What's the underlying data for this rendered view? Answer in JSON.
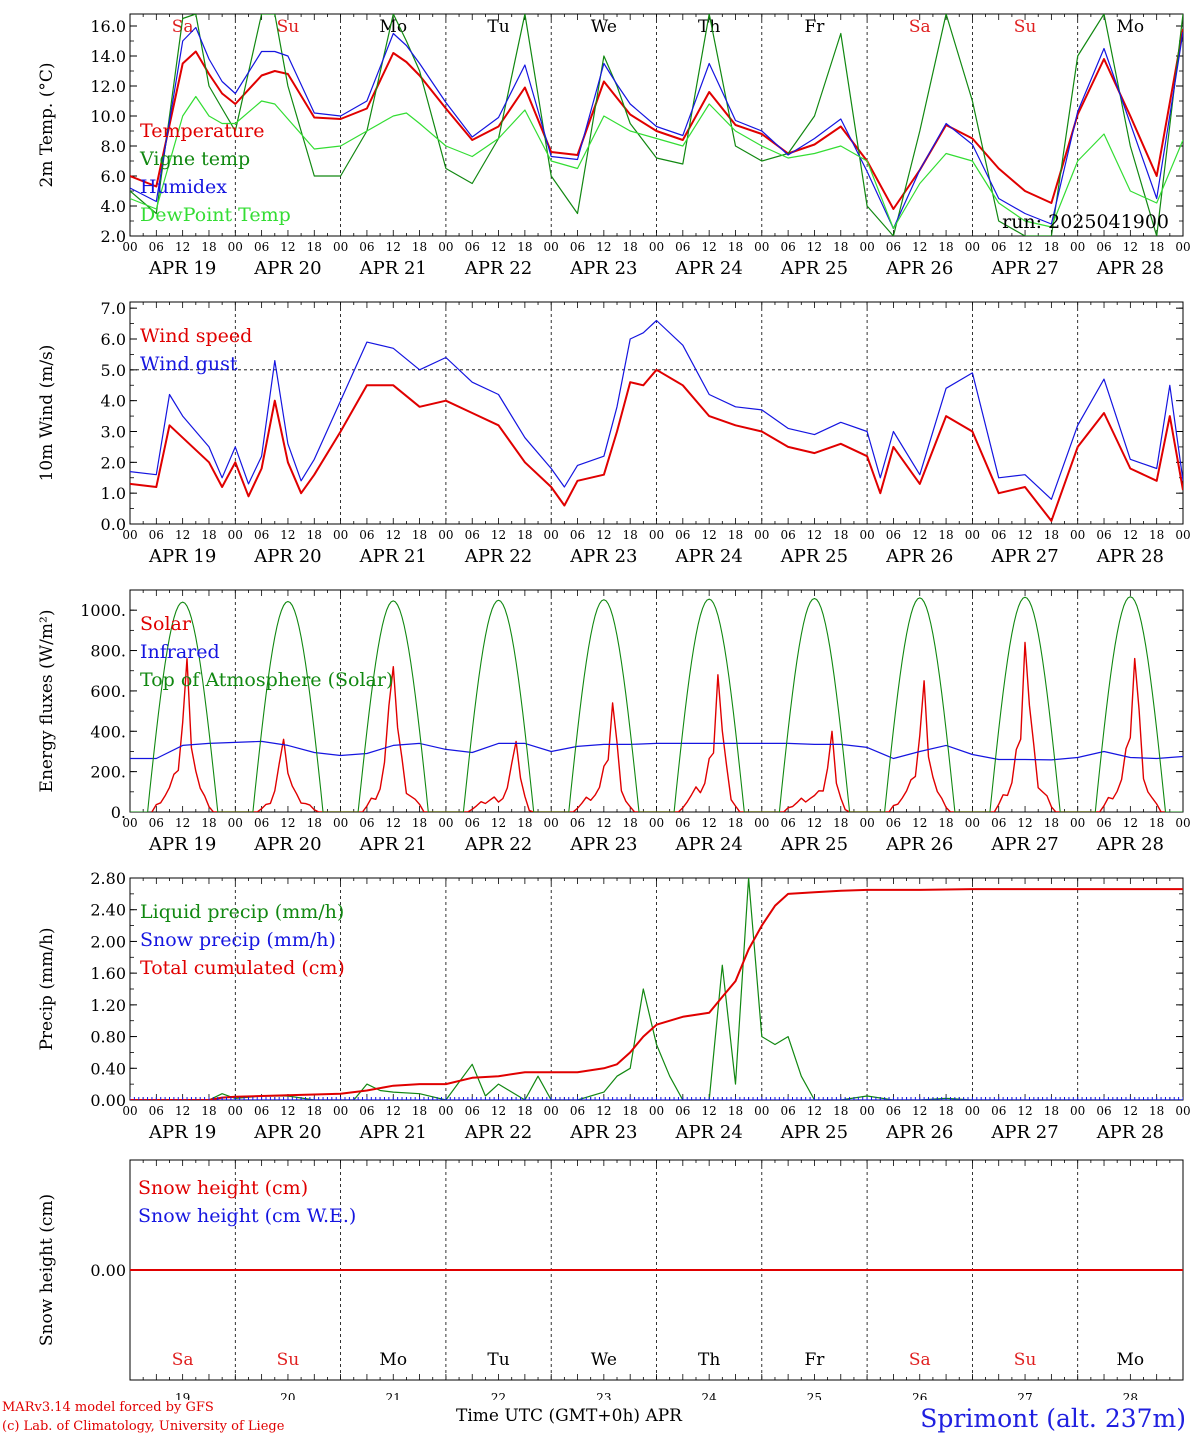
{
  "days": {
    "weekday_labels": [
      "Sa",
      "Su",
      "Mo",
      "Tu",
      "We",
      "Th",
      "Fr",
      "Sa",
      "Su",
      "Mo"
    ],
    "weekday_colors": [
      "#e02020",
      "#e02020",
      "#000000",
      "#000000",
      "#000000",
      "#000000",
      "#000000",
      "#e02020",
      "#e02020",
      "#000000"
    ],
    "date_labels": [
      "APR 19",
      "APR 20",
      "APR 21",
      "APR 22",
      "APR 23",
      "APR 24",
      "APR 25",
      "APR 26",
      "APR 27",
      "APR 28"
    ],
    "day_numbers": [
      "19",
      "20",
      "21",
      "22",
      "23",
      "24",
      "25",
      "26",
      "27",
      "28"
    ],
    "hour_ticks": [
      "00",
      "06",
      "12",
      "18"
    ],
    "final_hour": "00"
  },
  "colors": {
    "red": "#e00000",
    "green": "#118811",
    "blue": "#1515e0",
    "light_green": "#33dd33"
  },
  "footer": {
    "credit_line1": "MARv3.14 model forced by GFS",
    "credit_line2": "(c) Lab. of Climatology, University of Liege",
    "time_axis_label": "Time UTC (GMT+0h) APR",
    "station": "Sprimont (alt. 237m)"
  },
  "chart_data": [
    {
      "type": "line",
      "ylabel": "2m Temp. (°C)",
      "ylim": [
        2.0,
        16.8
      ],
      "yticks": [
        2.0,
        4.0,
        6.0,
        8.0,
        10.0,
        12.0,
        14.0,
        16.0
      ],
      "ytick_labels": [
        "2.0",
        "4.0",
        "6.0",
        "8.0",
        "10.0",
        "12.0",
        "14.0",
        "16.0"
      ],
      "annotation": "run: 2025041900",
      "x_unit": "hours since APR 19 00 UTC",
      "series": [
        {
          "name": "Temperature",
          "color": "red",
          "x": [
            0,
            6,
            12,
            15,
            18,
            21,
            24,
            30,
            33,
            36,
            42,
            48,
            54,
            60,
            63,
            66,
            72,
            78,
            84,
            90,
            96,
            102,
            108,
            111,
            114,
            120,
            126,
            132,
            138,
            144,
            150,
            156,
            162,
            168,
            174,
            180,
            186,
            192,
            198,
            204,
            210,
            216,
            222,
            228,
            234,
            240
          ],
          "y": [
            6.0,
            5.3,
            13.5,
            14.3,
            12.8,
            11.5,
            10.8,
            12.7,
            13.0,
            12.8,
            9.9,
            9.8,
            10.5,
            14.2,
            13.6,
            12.7,
            10.5,
            8.4,
            9.3,
            11.9,
            7.6,
            7.4,
            12.3,
            11.2,
            10.1,
            9.0,
            8.4,
            11.6,
            9.4,
            8.8,
            7.5,
            8.1,
            9.3,
            7.0,
            3.8,
            6.4,
            9.4,
            8.5,
            6.5,
            5.0,
            4.2,
            10.1,
            13.8,
            10.0,
            6.0,
            15.8
          ]
        },
        {
          "name": "Vigne temp",
          "color": "green",
          "x": [
            0,
            6,
            12,
            15,
            18,
            21,
            24,
            30,
            33,
            36,
            42,
            48,
            54,
            60,
            63,
            66,
            72,
            78,
            84,
            90,
            96,
            102,
            108,
            111,
            114,
            120,
            126,
            132,
            138,
            144,
            150,
            156,
            162,
            168,
            174,
            180,
            186,
            192,
            198,
            204,
            210,
            216,
            222,
            228,
            234,
            240
          ],
          "y": [
            5.0,
            3.5,
            16.5,
            16.8,
            12.0,
            10.5,
            9.0,
            16.8,
            16.8,
            12.0,
            6.0,
            6.0,
            9.0,
            16.8,
            15.0,
            13.0,
            6.5,
            5.5,
            8.5,
            16.8,
            6.0,
            3.5,
            14.0,
            12.0,
            9.5,
            7.2,
            6.8,
            16.8,
            8.0,
            7.0,
            7.5,
            10.0,
            15.5,
            4.0,
            2.0,
            9.0,
            16.8,
            11.0,
            3.0,
            2.0,
            2.0,
            14.0,
            16.8,
            8.0,
            2.0,
            16.8
          ]
        },
        {
          "name": "Humidex",
          "color": "blue",
          "x": [
            0,
            6,
            12,
            15,
            18,
            21,
            24,
            30,
            33,
            36,
            42,
            48,
            54,
            60,
            63,
            66,
            72,
            78,
            84,
            90,
            96,
            102,
            108,
            111,
            114,
            120,
            126,
            132,
            138,
            144,
            150,
            156,
            162,
            168,
            174,
            180,
            186,
            192,
            198,
            204,
            210,
            216,
            222,
            228,
            234,
            240
          ],
          "y": [
            5.2,
            4.3,
            15.0,
            15.9,
            13.8,
            12.3,
            11.5,
            14.3,
            14.3,
            14.0,
            10.2,
            10.0,
            11.0,
            15.5,
            14.7,
            13.5,
            10.9,
            8.6,
            9.9,
            13.4,
            7.3,
            7.1,
            13.5,
            12.1,
            10.8,
            9.3,
            8.7,
            13.5,
            9.7,
            9.0,
            7.4,
            8.5,
            9.8,
            6.3,
            2.5,
            6.4,
            9.5,
            8.1,
            4.5,
            3.5,
            2.8,
            10.3,
            14.5,
            9.5,
            4.5,
            15.6
          ]
        },
        {
          "name": "DewPoint Temp",
          "color": "light_green",
          "x": [
            0,
            6,
            12,
            15,
            18,
            21,
            24,
            30,
            33,
            36,
            42,
            48,
            54,
            60,
            63,
            66,
            72,
            78,
            84,
            90,
            96,
            102,
            108,
            111,
            114,
            120,
            126,
            132,
            138,
            144,
            150,
            156,
            162,
            168,
            174,
            180,
            186,
            192,
            198,
            204,
            210,
            216,
            222,
            228,
            234,
            240
          ],
          "y": [
            4.5,
            3.8,
            10.0,
            11.3,
            10.0,
            9.5,
            9.5,
            11.0,
            10.8,
            9.8,
            7.8,
            8.0,
            9.0,
            10.0,
            10.2,
            9.5,
            8.0,
            7.3,
            8.5,
            10.4,
            7.0,
            6.5,
            10.0,
            9.5,
            9.0,
            8.5,
            8.0,
            10.8,
            9.0,
            8.0,
            7.2,
            7.5,
            8.0,
            7.0,
            2.5,
            5.5,
            7.5,
            7.0,
            4.2,
            3.0,
            2.6,
            7.0,
            8.8,
            5.0,
            4.2,
            8.4
          ]
        }
      ]
    },
    {
      "type": "line",
      "ylabel": "10m Wind (m/s)",
      "ylim": [
        0.0,
        7.2
      ],
      "yticks": [
        0.0,
        1.0,
        2.0,
        3.0,
        4.0,
        5.0,
        6.0,
        7.0
      ],
      "ytick_labels": [
        "0.0",
        "1.0",
        "2.0",
        "3.0",
        "4.0",
        "5.0",
        "6.0",
        "7.0"
      ],
      "reference_line": 5.0,
      "x_unit": "hours since APR 19 00 UTC",
      "series": [
        {
          "name": "Wind speed",
          "color": "red",
          "x": [
            0,
            6,
            9,
            12,
            18,
            21,
            24,
            27,
            30,
            33,
            36,
            39,
            42,
            48,
            54,
            60,
            66,
            72,
            78,
            84,
            90,
            96,
            99,
            102,
            108,
            111,
            114,
            117,
            120,
            126,
            132,
            138,
            144,
            150,
            156,
            162,
            168,
            171,
            174,
            180,
            186,
            192,
            198,
            204,
            210,
            216,
            222,
            228,
            234,
            237,
            240
          ],
          "y": [
            1.3,
            1.2,
            3.2,
            2.8,
            2.0,
            1.2,
            2.0,
            0.9,
            1.8,
            4.0,
            2.0,
            1.0,
            1.6,
            3.0,
            4.5,
            4.5,
            3.8,
            4.0,
            3.6,
            3.2,
            2.0,
            1.2,
            0.6,
            1.4,
            1.6,
            3.0,
            4.6,
            4.5,
            5.0,
            4.5,
            3.5,
            3.2,
            3.0,
            2.5,
            2.3,
            2.6,
            2.2,
            1.0,
            2.5,
            1.3,
            3.5,
            3.0,
            1.0,
            1.2,
            0.1,
            2.5,
            3.6,
            1.8,
            1.4,
            3.5,
            1.1
          ]
        },
        {
          "name": "Wind gust",
          "color": "blue",
          "x": [
            0,
            6,
            9,
            12,
            18,
            21,
            24,
            27,
            30,
            33,
            36,
            39,
            42,
            48,
            54,
            60,
            66,
            72,
            78,
            84,
            90,
            96,
            99,
            102,
            108,
            111,
            114,
            117,
            120,
            126,
            132,
            138,
            144,
            150,
            156,
            162,
            168,
            171,
            174,
            180,
            186,
            192,
            198,
            204,
            210,
            216,
            222,
            228,
            234,
            237,
            240
          ],
          "y": [
            1.7,
            1.6,
            4.2,
            3.5,
            2.5,
            1.5,
            2.5,
            1.3,
            2.2,
            5.3,
            2.6,
            1.4,
            2.1,
            4.0,
            5.9,
            5.7,
            5.0,
            5.4,
            4.6,
            4.2,
            2.8,
            1.8,
            1.2,
            1.9,
            2.2,
            3.8,
            6.0,
            6.2,
            6.6,
            5.8,
            4.2,
            3.8,
            3.7,
            3.1,
            2.9,
            3.3,
            3.0,
            1.5,
            3.0,
            1.6,
            4.4,
            4.9,
            1.5,
            1.6,
            0.8,
            3.2,
            4.7,
            2.1,
            1.8,
            4.5,
            1.4
          ]
        }
      ]
    },
    {
      "type": "line",
      "ylabel": "Energy fluxes (W/m²)",
      "ylim": [
        0,
        1100
      ],
      "yticks": [
        0,
        200,
        400,
        600,
        800,
        1000
      ],
      "ytick_labels": [
        "0.",
        "200.",
        "400.",
        "600.",
        "800.",
        "1000."
      ],
      "x_unit": "hours since APR 19 00 UTC",
      "series": [
        {
          "name": "Solar",
          "color": "red",
          "daily_peak_hour": [
            13,
            11,
            12,
            16,
            14,
            14,
            16,
            13,
            12,
            13
          ],
          "daily_peak": [
            760,
            360,
            720,
            350,
            540,
            680,
            400,
            650,
            840,
            760
          ]
        },
        {
          "name": "Infrared",
          "color": "blue",
          "x": [
            0,
            6,
            12,
            18,
            24,
            30,
            36,
            42,
            48,
            54,
            60,
            66,
            72,
            78,
            84,
            90,
            96,
            102,
            108,
            114,
            120,
            126,
            132,
            138,
            144,
            150,
            156,
            162,
            168,
            174,
            180,
            186,
            192,
            198,
            204,
            210,
            216,
            222,
            228,
            234,
            240
          ],
          "y": [
            265,
            265,
            330,
            340,
            345,
            350,
            330,
            295,
            280,
            290,
            330,
            340,
            310,
            295,
            340,
            340,
            300,
            325,
            335,
            335,
            340,
            340,
            340,
            340,
            340,
            340,
            335,
            335,
            320,
            265,
            300,
            330,
            285,
            260,
            260,
            258,
            270,
            300,
            270,
            265,
            275
          ]
        },
        {
          "name": "Top of Atmosphere (Solar)",
          "color": "green",
          "daily_max": [
            1040,
            1043,
            1046,
            1049,
            1052,
            1055,
            1058,
            1061,
            1064,
            1067
          ]
        }
      ]
    },
    {
      "type": "line",
      "ylabel": "Precip (mm/h)",
      "ylim": [
        0.0,
        2.8
      ],
      "yticks": [
        0.0,
        0.4,
        0.8,
        1.2,
        1.6,
        2.0,
        2.4,
        2.8
      ],
      "ytick_labels": [
        "0.00",
        "0.40",
        "0.80",
        "1.20",
        "1.60",
        "2.00",
        "2.40",
        "2.80"
      ],
      "x_unit": "hours since APR 19 00 UTC",
      "series": [
        {
          "name": "Liquid precip (mm/h)",
          "color": "green",
          "x": [
            0,
            18,
            21,
            24,
            30,
            36,
            42,
            51,
            54,
            57,
            60,
            66,
            72,
            78,
            81,
            84,
            90,
            93,
            96,
            102,
            108,
            111,
            114,
            117,
            120,
            123,
            126,
            129,
            132,
            135,
            138,
            141,
            144,
            147,
            150,
            153,
            156,
            162,
            168,
            174,
            180,
            186,
            192,
            198,
            204,
            210,
            216,
            222,
            228,
            234,
            240
          ],
          "y": [
            0,
            0,
            0.08,
            0.02,
            0.05,
            0.05,
            0,
            0,
            0.2,
            0.12,
            0.1,
            0.08,
            0,
            0.45,
            0.05,
            0.2,
            0,
            0.3,
            0,
            0,
            0.1,
            0.3,
            0.4,
            1.4,
            0.7,
            0.3,
            0,
            0,
            0,
            1.7,
            0.2,
            2.8,
            0.8,
            0.7,
            0.8,
            0.3,
            0,
            0,
            0.05,
            0,
            0,
            0.02,
            0,
            0,
            0,
            0,
            0,
            0,
            0,
            0,
            0
          ]
        },
        {
          "name": "Snow precip (mm/h)",
          "color": "blue",
          "x": [
            0,
            240
          ],
          "y": [
            0,
            0
          ]
        },
        {
          "name": "Total cumulated (cm)",
          "color": "red",
          "x": [
            0,
            18,
            21,
            24,
            30,
            36,
            42,
            48,
            54,
            60,
            66,
            72,
            78,
            84,
            90,
            96,
            102,
            108,
            111,
            114,
            117,
            120,
            126,
            132,
            135,
            138,
            141,
            144,
            147,
            150,
            156,
            162,
            168,
            180,
            192,
            204,
            216,
            228,
            240
          ],
          "y": [
            0,
            0,
            0.03,
            0.04,
            0.05,
            0.06,
            0.07,
            0.08,
            0.12,
            0.18,
            0.2,
            0.2,
            0.28,
            0.3,
            0.35,
            0.35,
            0.35,
            0.4,
            0.45,
            0.6,
            0.8,
            0.95,
            1.05,
            1.1,
            1.3,
            1.5,
            1.9,
            2.2,
            2.45,
            2.6,
            2.62,
            2.64,
            2.65,
            2.65,
            2.66,
            2.66,
            2.66,
            2.66,
            2.66
          ]
        }
      ]
    },
    {
      "type": "line",
      "ylabel": "Snow height (cm)",
      "ylim": [
        -1.0,
        1.0
      ],
      "yticks": [
        0.0
      ],
      "ytick_labels": [
        "0.00"
      ],
      "x_unit": "hours since APR 19 00 UTC",
      "series": [
        {
          "name": "Snow height (cm)",
          "color": "red",
          "x": [
            0,
            240
          ],
          "y": [
            0,
            0
          ]
        },
        {
          "name": "Snow height (cm W.E.)",
          "color": "blue",
          "x": [],
          "y": []
        }
      ]
    }
  ]
}
